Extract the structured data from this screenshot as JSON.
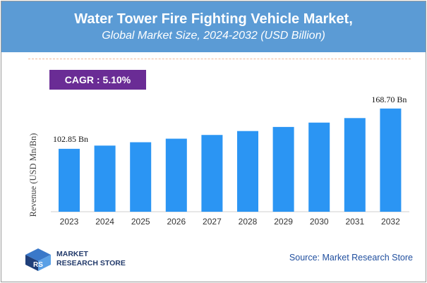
{
  "header": {
    "title": "Water Tower Fire Fighting Vehicle Market,",
    "subtitle": "Global Market Size, 2024-2032 (USD Billion)"
  },
  "cagr": {
    "label": "CAGR :",
    "value": "5.10%"
  },
  "colors": {
    "header_bg": "#5b9bd5",
    "bar": "#2b95f3",
    "cagr_bg": "#6a2c95",
    "divider": "#f0b89a"
  },
  "chart_data": {
    "type": "bar",
    "categories": [
      "2023",
      "2024",
      "2025",
      "2026",
      "2027",
      "2028",
      "2029",
      "2030",
      "2031",
      "2032"
    ],
    "values": [
      102.85,
      108.1,
      113.6,
      119.4,
      125.5,
      131.9,
      138.6,
      145.7,
      153.1,
      168.7
    ],
    "data_labels": {
      "first": "102.85 Bn",
      "last": "168.70 Bn"
    },
    "ylabel": "Revenue (USD Mn/Bn)",
    "xlabel": "",
    "ylim": [
      0,
      180
    ],
    "grid": false,
    "legend": "none"
  },
  "footer": {
    "logo_line1": "MARKET",
    "logo_line2": "RESEARCH STORE",
    "source": "Source: Market Research Store"
  }
}
